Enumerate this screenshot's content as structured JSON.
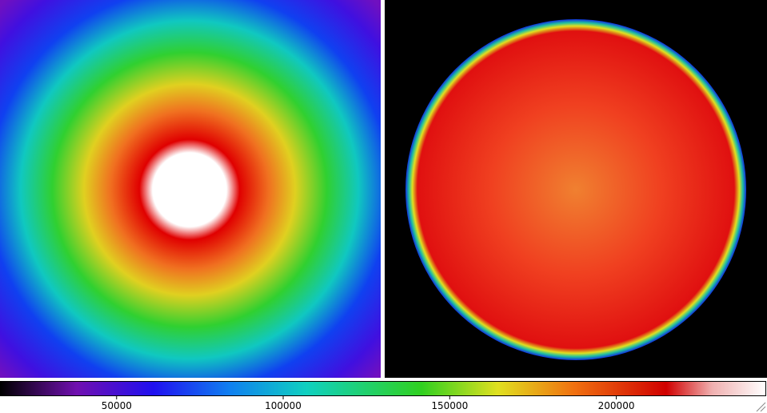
{
  "colorbar": {
    "lim": [
      15000,
      245000
    ],
    "ticks": [
      50000,
      100000,
      150000,
      200000
    ]
  }
}
